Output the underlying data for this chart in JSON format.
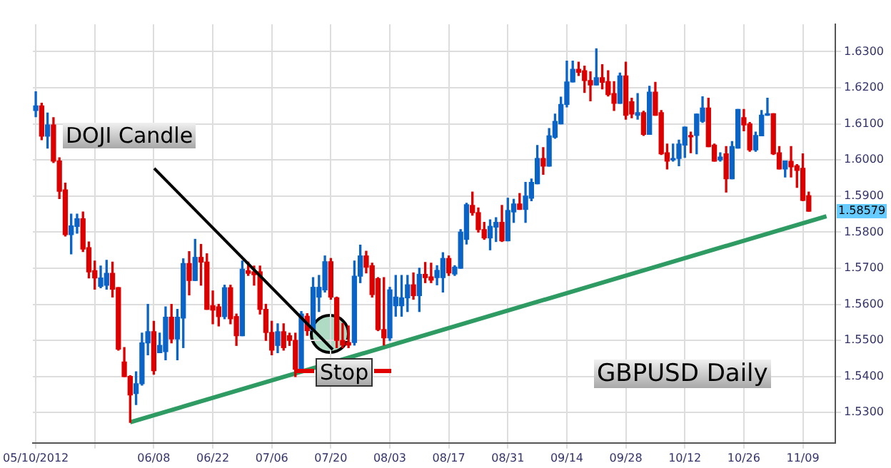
{
  "chart_data": {
    "type": "candlestick",
    "categories": [
      "05/10/2012",
      null,
      null,
      null,
      null,
      null,
      null,
      null,
      null,
      null,
      null,
      null,
      null,
      null,
      null,
      null,
      null,
      null,
      null,
      null,
      "06/08",
      null,
      null,
      null,
      null,
      null,
      null,
      null,
      null,
      null,
      "06/22",
      null,
      null,
      null,
      null,
      null,
      null,
      null,
      null,
      null,
      "07/06",
      null,
      null,
      null,
      null,
      null,
      null,
      null,
      null,
      null,
      "07/20",
      null,
      null,
      null,
      null,
      null,
      null,
      null,
      null,
      null,
      "08/03",
      null,
      null,
      null,
      null,
      null,
      null,
      null,
      null,
      null,
      "08/17",
      null,
      null,
      null,
      null,
      null,
      null,
      null,
      null,
      null,
      "08/31",
      null,
      null,
      null,
      null,
      null,
      null,
      null,
      null,
      null,
      "09/14",
      null,
      null,
      null,
      null,
      null,
      null,
      null,
      null,
      null,
      "09/28",
      null,
      null,
      null,
      null,
      null,
      null,
      null,
      null,
      null,
      "10/12",
      null,
      null,
      null,
      null,
      null,
      null,
      null,
      null,
      null,
      "10/26",
      null,
      null,
      null,
      null,
      null,
      null,
      null,
      null,
      null,
      "11/09",
      null,
      null,
      null,
      null,
      null
    ],
    "series": [
      {
        "type": "candlestick",
        "ohlc": [
          [
            1.6137,
            1.6189,
            1.612,
            1.615
          ],
          [
            1.615,
            1.6157,
            1.6056,
            1.6066
          ],
          [
            1.6066,
            1.613,
            1.6033,
            1.6097
          ],
          [
            1.6097,
            1.6117,
            1.5993,
            1.5997
          ],
          [
            1.5997,
            1.6006,
            1.5893,
            1.5913
          ],
          [
            1.5917,
            1.5936,
            1.5789,
            1.5793
          ],
          [
            1.5793,
            1.585,
            1.574,
            1.5817
          ],
          [
            1.5816,
            1.585,
            1.5797,
            1.5837
          ],
          [
            1.5837,
            1.5856,
            1.5746,
            1.5753
          ],
          [
            1.5757,
            1.5773,
            1.5673,
            1.569
          ],
          [
            1.5693,
            1.572,
            1.5642,
            1.5673
          ],
          [
            1.565,
            1.5706,
            1.5646,
            1.5673
          ],
          [
            1.5653,
            1.5722,
            1.5642,
            1.5686
          ],
          [
            1.5686,
            1.5717,
            1.562,
            1.5642
          ],
          [
            1.5646,
            1.5646,
            1.5473,
            1.5476
          ],
          [
            1.544,
            1.548,
            1.54,
            1.54
          ],
          [
            1.54,
            1.5402,
            1.5273,
            1.5349
          ],
          [
            1.5353,
            1.5413,
            1.5322,
            1.538
          ],
          [
            1.538,
            1.552,
            1.5376,
            1.5493
          ],
          [
            1.5493,
            1.56,
            1.546,
            1.5524
          ],
          [
            1.5524,
            1.5553,
            1.5406,
            1.5416
          ],
          [
            1.5466,
            1.552,
            1.5466,
            1.5486
          ],
          [
            1.5469,
            1.5593,
            1.5446,
            1.5564
          ],
          [
            1.5564,
            1.56,
            1.5493,
            1.5504
          ],
          [
            1.5504,
            1.5586,
            1.5446,
            1.5564
          ],
          [
            1.5562,
            1.5726,
            1.548,
            1.5713
          ],
          [
            1.5713,
            1.5746,
            1.5626,
            1.5666
          ],
          [
            1.5666,
            1.578,
            1.5666,
            1.573
          ],
          [
            1.573,
            1.5766,
            1.5653,
            1.5717
          ],
          [
            1.5717,
            1.574,
            1.5586,
            1.5586
          ],
          [
            1.5596,
            1.5637,
            1.5546,
            1.5584
          ],
          [
            1.5593,
            1.56,
            1.554,
            1.5566
          ],
          [
            1.5566,
            1.5653,
            1.556,
            1.5646
          ],
          [
            1.5646,
            1.5653,
            1.5546,
            1.556
          ],
          [
            1.5566,
            1.5573,
            1.5486,
            1.5513
          ],
          [
            1.5513,
            1.572,
            1.5513,
            1.5697
          ],
          [
            1.5693,
            1.5717,
            1.568,
            1.5686
          ],
          [
            1.569,
            1.5706,
            1.5653,
            1.5682
          ],
          [
            1.569,
            1.5706,
            1.5573,
            1.5586
          ],
          [
            1.5586,
            1.56,
            1.55,
            1.5522
          ],
          [
            1.5522,
            1.5553,
            1.546,
            1.5473
          ],
          [
            1.5486,
            1.5546,
            1.5466,
            1.5524
          ],
          [
            1.5524,
            1.5546,
            1.5473,
            1.548
          ],
          [
            1.5513,
            1.552,
            1.5486,
            1.55
          ],
          [
            1.55,
            1.552,
            1.54,
            1.542
          ],
          [
            1.542,
            1.558,
            1.542,
            1.5573
          ],
          [
            1.5567,
            1.5574,
            1.5514,
            1.5527
          ],
          [
            1.5527,
            1.5674,
            1.5527,
            1.5647
          ],
          [
            1.562,
            1.568,
            1.558,
            1.5647
          ],
          [
            1.564,
            1.5734,
            1.5634,
            1.5718
          ],
          [
            1.5718,
            1.5727,
            1.5614,
            1.562
          ],
          [
            1.5618,
            1.562,
            1.548,
            1.55
          ],
          [
            1.55,
            1.5547,
            1.548,
            1.5487
          ],
          [
            1.5494,
            1.554,
            1.548,
            1.5487
          ],
          [
            1.5494,
            1.572,
            1.5487,
            1.5678
          ],
          [
            1.5678,
            1.5764,
            1.566,
            1.5734
          ],
          [
            1.5734,
            1.5747,
            1.5687,
            1.5703
          ],
          [
            1.5707,
            1.5714,
            1.562,
            1.5627
          ],
          [
            1.5671,
            1.5674,
            1.5527,
            1.553
          ],
          [
            1.553,
            1.5674,
            1.5487,
            1.5507
          ],
          [
            1.5507,
            1.5647,
            1.55,
            1.564
          ],
          [
            1.5596,
            1.568,
            1.5567,
            1.562
          ],
          [
            1.5596,
            1.568,
            1.5567,
            1.5618
          ],
          [
            1.5618,
            1.568,
            1.558,
            1.5654
          ],
          [
            1.5654,
            1.5687,
            1.5614,
            1.5624
          ],
          [
            1.5624,
            1.57,
            1.558,
            1.5683
          ],
          [
            1.5683,
            1.5716,
            1.566,
            1.5674
          ],
          [
            1.5676,
            1.5714,
            1.566,
            1.5667
          ],
          [
            1.5674,
            1.5707,
            1.5654,
            1.5694
          ],
          [
            1.5674,
            1.5743,
            1.5634,
            1.5727
          ],
          [
            1.5727,
            1.5734,
            1.568,
            1.5687
          ],
          [
            1.5684,
            1.5707,
            1.568,
            1.5703
          ],
          [
            1.57,
            1.5807,
            1.57,
            1.58
          ],
          [
            1.578,
            1.588,
            1.5767,
            1.5876
          ],
          [
            1.5874,
            1.5911,
            1.5847,
            1.5854
          ],
          [
            1.5854,
            1.5867,
            1.58,
            1.5807
          ],
          [
            1.5807,
            1.5827,
            1.578,
            1.5784
          ],
          [
            1.5784,
            1.5834,
            1.5751,
            1.5816
          ],
          [
            1.5814,
            1.584,
            1.5774,
            1.5827
          ],
          [
            1.5827,
            1.5874,
            1.5774,
            1.5776
          ],
          [
            1.5776,
            1.5894,
            1.5776,
            1.586
          ],
          [
            1.5856,
            1.5891,
            1.5827,
            1.5878
          ],
          [
            1.5878,
            1.5907,
            1.5863,
            1.5863
          ],
          [
            1.5863,
            1.5938,
            1.5827,
            1.59
          ],
          [
            1.5894,
            1.5947,
            1.5887,
            1.5938
          ],
          [
            1.5934,
            1.604,
            1.5934,
            1.6004
          ],
          [
            1.6004,
            1.6034,
            1.596,
            1.5983
          ],
          [
            1.5983,
            1.6087,
            1.5983,
            1.6067
          ],
          [
            1.6063,
            1.6127,
            1.606,
            1.6107
          ],
          [
            1.61,
            1.6174,
            1.61,
            1.6154
          ],
          [
            1.6154,
            1.6274,
            1.6147,
            1.6216
          ],
          [
            1.6216,
            1.6274,
            1.6216,
            1.6251
          ],
          [
            1.6251,
            1.6271,
            1.6234,
            1.6243
          ],
          [
            1.6247,
            1.626,
            1.6187,
            1.622
          ],
          [
            1.622,
            1.6244,
            1.6164,
            1.6208
          ],
          [
            1.6208,
            1.6308,
            1.6208,
            1.6228
          ],
          [
            1.6228,
            1.6264,
            1.6197,
            1.6215
          ],
          [
            1.6217,
            1.6247,
            1.6177,
            1.6181
          ],
          [
            1.6184,
            1.6217,
            1.6137,
            1.6157
          ],
          [
            1.6157,
            1.6241,
            1.6157,
            1.6233
          ],
          [
            1.6233,
            1.6271,
            1.6113,
            1.6124
          ],
          [
            1.6161,
            1.6171,
            1.6117,
            1.6127
          ],
          [
            1.6124,
            1.6184,
            1.6113,
            1.6131
          ],
          [
            1.6131,
            1.6135,
            1.6068,
            1.6071
          ],
          [
            1.6071,
            1.6204,
            1.6071,
            1.6188
          ],
          [
            1.6188,
            1.6215,
            1.6124,
            1.6124
          ],
          [
            1.6131,
            1.6137,
            1.6015,
            1.6017
          ],
          [
            1.602,
            1.6044,
            1.5975,
            1.5997
          ],
          [
            1.6,
            1.6044,
            1.5997,
            1.6004
          ],
          [
            1.6004,
            1.6055,
            1.5984,
            1.6044
          ],
          [
            1.6041,
            1.6091,
            1.6007,
            1.6091
          ],
          [
            1.6068,
            1.6077,
            1.602,
            1.6064
          ],
          [
            1.6068,
            1.6127,
            1.6017,
            1.6127
          ],
          [
            1.6107,
            1.6175,
            1.6104,
            1.6144
          ],
          [
            1.6144,
            1.6171,
            1.6037,
            1.6037
          ],
          [
            1.6041,
            1.6044,
            1.5997,
            1.5997
          ],
          [
            1.6,
            1.602,
            1.5997,
            1.6008
          ],
          [
            1.6017,
            1.6037,
            1.5911,
            1.5948
          ],
          [
            1.5948,
            1.6051,
            1.5948,
            1.6037
          ],
          [
            1.6033,
            1.614,
            1.6033,
            1.614
          ],
          [
            1.6117,
            1.614,
            1.6081,
            1.6097
          ],
          [
            1.61,
            1.6104,
            1.6024,
            1.6028
          ],
          [
            1.6028,
            1.6077,
            1.6024,
            1.6068
          ],
          [
            1.6067,
            1.6137,
            1.6067,
            1.6124
          ],
          [
            1.6124,
            1.6171,
            1.6124,
            1.6128
          ],
          [
            1.6128,
            1.6128,
            1.6015,
            1.6017
          ],
          [
            1.602,
            1.6037,
            1.5975,
            1.5975
          ],
          [
            1.5975,
            1.5997,
            1.5953,
            1.5997
          ],
          [
            1.5996,
            1.6037,
            1.5953,
            1.5981
          ],
          [
            1.5984,
            1.5987,
            1.5924,
            1.5971
          ],
          [
            1.5977,
            1.6017,
            1.5887,
            1.5888
          ],
          [
            1.5901,
            1.5911,
            1.5858,
            1.5858
          ],
          null,
          null,
          null,
          null
        ],
        "colors": [
          "#0a64c8",
          "#dd0000",
          "#0a64c8",
          "#dd0000",
          "#dd0000",
          "#dd0000",
          "#0a64c8",
          "#0a64c8",
          "#dd0000",
          "#dd0000",
          "#dd0000",
          "#0a64c8",
          "#0a64c8",
          "#dd0000",
          "#dd0000",
          "#dd0000",
          "#dd0000",
          "#0a64c8",
          "#0a64c8",
          "#0a64c8",
          "#dd0000",
          "#0a64c8",
          "#0a64c8",
          "#dd0000",
          "#0a64c8",
          "#0a64c8",
          "#dd0000",
          "#0a64c8",
          "#dd0000",
          "#dd0000",
          "#dd0000",
          "#dd0000",
          "#0a64c8",
          "#dd0000",
          "#dd0000",
          "#0a64c8",
          "#dd0000",
          "#dd0000",
          "#dd0000",
          "#dd0000",
          "#dd0000",
          "#0a64c8",
          "#dd0000",
          "#dd0000",
          "#dd0000",
          "#0a64c8",
          "#dd0000",
          "#0a64c8",
          "#0a64c8",
          "#0a64c8",
          "#dd0000",
          "#dd0000",
          "#dd0000",
          "#dd0000",
          "#0a64c8",
          "#0a64c8",
          "#dd0000",
          "#dd0000",
          "#dd0000",
          "#dd0000",
          "#0a64c8",
          "#0a64c8",
          "#0a64c8",
          "#0a64c8",
          "#dd0000",
          "#0a64c8",
          "#dd0000",
          "#dd0000",
          "#0a64c8",
          "#0a64c8",
          "#dd0000",
          "#0a64c8",
          "#0a64c8",
          "#0a64c8",
          "#dd0000",
          "#dd0000",
          "#dd0000",
          "#0a64c8",
          "#0a64c8",
          "#dd0000",
          "#0a64c8",
          "#0a64c8",
          "#dd0000",
          "#0a64c8",
          "#0a64c8",
          "#0a64c8",
          "#dd0000",
          "#0a64c8",
          "#0a64c8",
          "#0a64c8",
          "#0a64c8",
          "#0a64c8",
          "#dd0000",
          "#dd0000",
          "#dd0000",
          "#0a64c8",
          "#dd0000",
          "#dd0000",
          "#dd0000",
          "#0a64c8",
          "#dd0000",
          "#dd0000",
          "#0a64c8",
          "#dd0000",
          "#0a64c8",
          "#dd0000",
          "#dd0000",
          "#dd0000",
          "#0a64c8",
          "#0a64c8",
          "#0a64c8",
          "#dd0000",
          "#0a64c8",
          "#0a64c8",
          "#dd0000",
          "#dd0000",
          "#0a64c8",
          "#dd0000",
          "#0a64c8",
          "#0a64c8",
          "#dd0000",
          "#dd0000",
          "#0a64c8",
          "#0a64c8",
          "#0a64c8",
          "#dd0000",
          "#dd0000",
          "#0a64c8",
          "#dd0000",
          "#dd0000",
          "#dd0000",
          "#dd0000",
          null,
          null,
          null,
          null
        ]
      },
      {
        "type": "line",
        "color": "#2e9b63",
        "values": [
          null,
          null,
          null,
          null,
          null,
          null,
          null,
          null,
          null,
          null,
          null,
          null,
          null,
          null,
          null,
          null,
          1.5273,
          null,
          null,
          null,
          null,
          null,
          null,
          null,
          null,
          null,
          null,
          null,
          null,
          null,
          null,
          null,
          null,
          null,
          null,
          null,
          null,
          null,
          null,
          null,
          null,
          null,
          null,
          null,
          null,
          null,
          null,
          null,
          null,
          null,
          null,
          null,
          null,
          null,
          null,
          null,
          null,
          null,
          null,
          null,
          null,
          null,
          null,
          null,
          null,
          null,
          null,
          null,
          null,
          null,
          null,
          null,
          null,
          null,
          null,
          null,
          null,
          null,
          null,
          null,
          null,
          null,
          null,
          null,
          null,
          null,
          null,
          null,
          null,
          null,
          null,
          null,
          null,
          null,
          null,
          null,
          null,
          null,
          null,
          null,
          null,
          null,
          null,
          null,
          null,
          null,
          null,
          null,
          null,
          null,
          null,
          null,
          null,
          null,
          null,
          null,
          null,
          null,
          null,
          null,
          null,
          null,
          null,
          null,
          null,
          null,
          null,
          null,
          null,
          null,
          null,
          null,
          null,
          null,
          1.5844,
          null
        ]
      }
    ],
    "ylim": [
      1.5216,
      1.6376
    ],
    "yticks": [
      {
        "value": 1.53,
        "label": "1.5300"
      },
      {
        "value": 1.54,
        "label": "1.5400"
      },
      {
        "value": 1.55,
        "label": "1.5500"
      },
      {
        "value": 1.56,
        "label": "1.5600"
      },
      {
        "value": 1.57,
        "label": "1.5700"
      },
      {
        "value": 1.58,
        "label": "1.5800"
      },
      {
        "value": 1.59,
        "label": "1.5900"
      },
      {
        "value": 1.6,
        "label": "1.6000"
      },
      {
        "value": 1.61,
        "label": "1.6100"
      },
      {
        "value": 1.62,
        "label": "1.6200"
      },
      {
        "value": 1.63,
        "label": "1.6300"
      }
    ],
    "grid": true,
    "legend": false,
    "annotations": [
      {
        "text": "DOJI Candle",
        "x": "07/20",
        "y": 1.548
      },
      "Stop",
      "GBPUSD Daily",
      "1.58579"
    ]
  }
}
